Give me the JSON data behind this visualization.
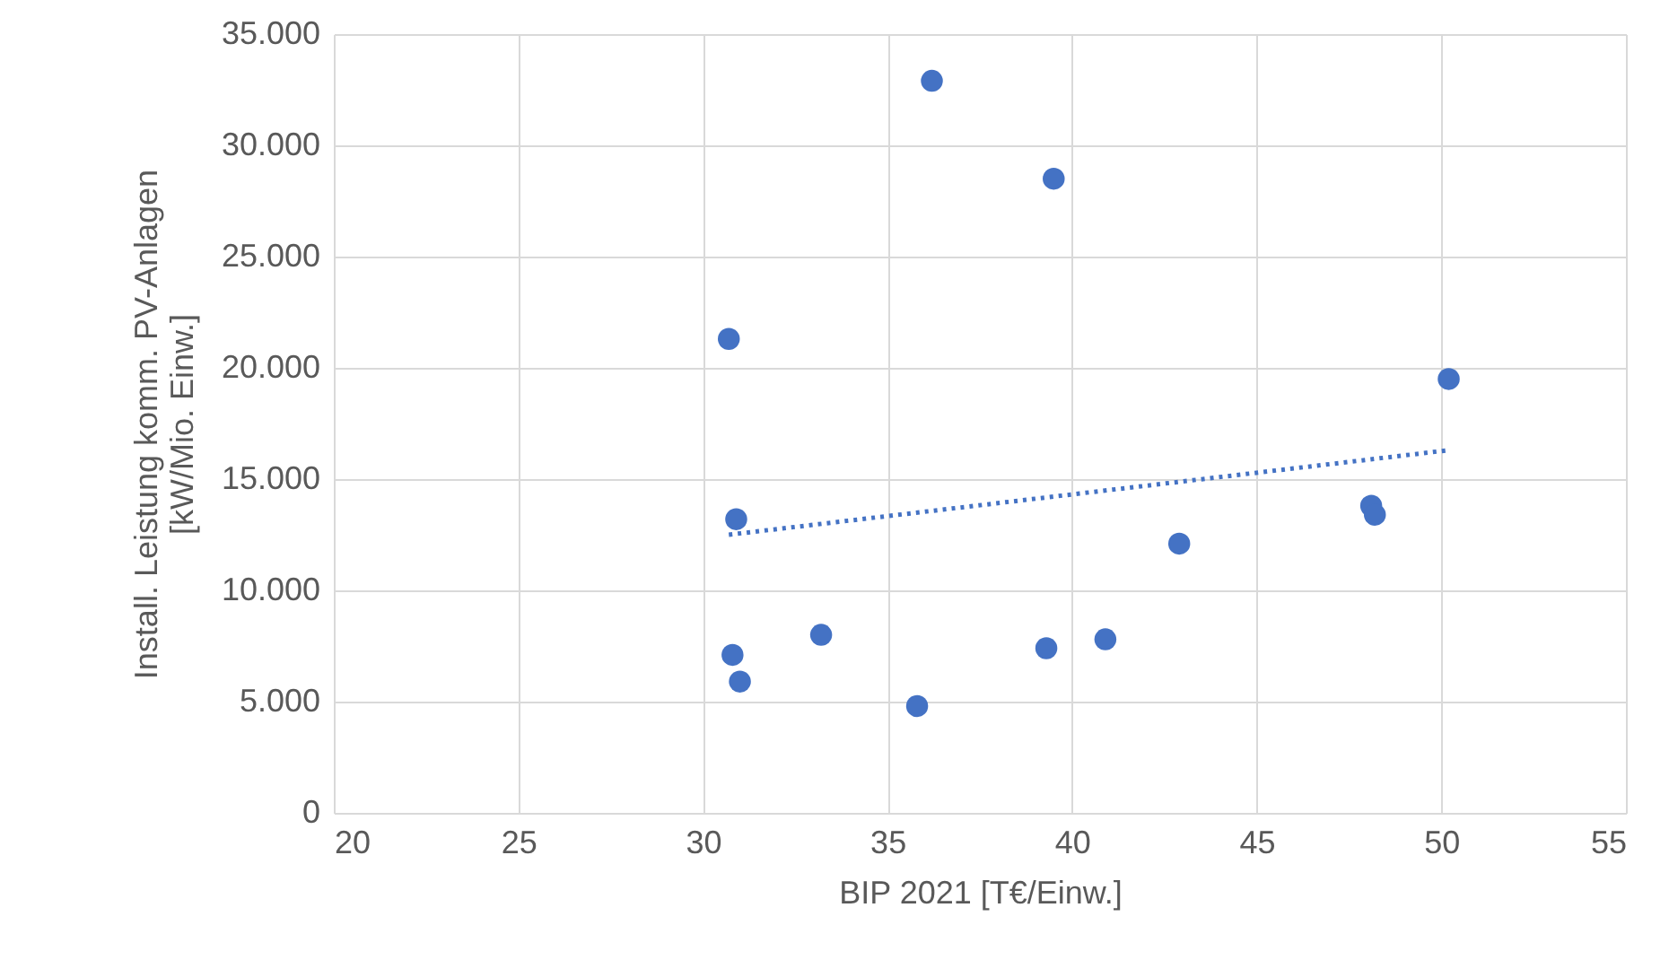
{
  "chart_data": {
    "type": "scatter",
    "xlabel": "BIP 2021 [T€/Einw.]",
    "ylabel": "Install. Leistung komm. PV-Anlagen [kW/Mio. Einw.]",
    "xlim": [
      20,
      55
    ],
    "xticks": [
      20,
      25,
      30,
      35,
      40,
      45,
      50,
      55
    ],
    "ylim": [
      0,
      35000
    ],
    "yticks": [
      0,
      {
        "value": 5000,
        "label": "5.000"
      },
      {
        "value": 10000,
        "label": "10.000"
      },
      {
        "value": 15000,
        "label": "15.000"
      },
      {
        "value": 20000,
        "label": "20.000"
      },
      {
        "value": 25000,
        "label": "25.000"
      },
      {
        "value": 30000,
        "label": "30.000"
      },
      {
        "value": 35000,
        "label": "35.000"
      }
    ],
    "grid": true,
    "marker": "circle",
    "series": [
      {
        "color": "#4472c4",
        "x": [
          36.2,
          39.5,
          30.7,
          50.2,
          30.9,
          48.1,
          48.2,
          42.9,
          30.8,
          33.2,
          31.0,
          35.8,
          39.3,
          40.9
        ],
        "values": [
          32900,
          28500,
          21300,
          19500,
          13200,
          13800,
          13400,
          12100,
          7100,
          8000,
          5900,
          4800,
          7400,
          7800
        ]
      },
      {
        "type": "line",
        "color": "#4472c4",
        "line_style": "dotted",
        "marker": "none",
        "x": [
          30.7,
          50.2
        ],
        "values": [
          12500,
          16300
        ]
      }
    ]
  }
}
